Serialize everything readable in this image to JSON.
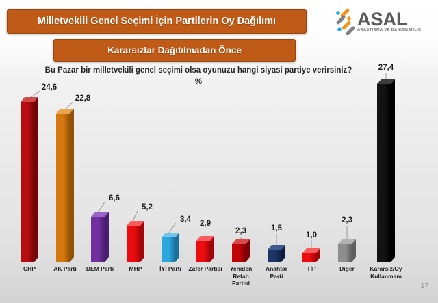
{
  "header": {
    "title": "Milletvekili Genel Seçimi İçin Partilerin Oy Dağılımı",
    "subtitle": "Kararsızlar Dağıtılmadan Önce",
    "logo": {
      "name": "ASAL",
      "tagline": "ARAŞTIRMA VE DANIŞMANLIK",
      "icon": "asal-percent-mark",
      "colors": {
        "gray": "#808285",
        "orange": "#f7941e",
        "blue": "#27aae1"
      }
    }
  },
  "page": {
    "number": "17"
  },
  "colors": {
    "banner_bg": "#bf5b17",
    "banner_border": "#96470f",
    "leader_line": "#9a9a9a",
    "background_top": "#ffffff",
    "background_bottom": "#d2d2d2"
  },
  "chart_data": {
    "type": "bar",
    "style": "3d-column",
    "title": "Bu Pazar bir milletvekili genel seçimi olsa oyunuzu hangi siyasi partiye verirsiniz?",
    "unit": "%",
    "ylim": [
      0,
      30
    ],
    "grid": false,
    "legend": "none",
    "categories": [
      "CHP",
      "AK Parti",
      "DEM Parti",
      "MHP",
      "İYİ Parti",
      "Zafer Partisi",
      "Yeniden Refah Partisi",
      "Anahtar Parti",
      "TİP",
      "Diğer",
      "Kararsız/Oy Kullanmam"
    ],
    "values": [
      24.6,
      22.8,
      6.6,
      5.2,
      3.4,
      2.9,
      2.3,
      1.5,
      1.0,
      2.3,
      27.4
    ],
    "bars": [
      {
        "category": "CHP",
        "lines": [
          "CHP"
        ],
        "value": 24.6,
        "label": "24,6",
        "front": "#b50d10",
        "side": "#730507",
        "top": "#d24949",
        "placement": "diag",
        "label_dx": 29,
        "label_dy": 21
      },
      {
        "category": "AK Parti",
        "lines": [
          "AK Parti"
        ],
        "value": 22.8,
        "label": "22,8",
        "front": "#d4770e",
        "side": "#925108",
        "top": "#eaa34f",
        "placement": "diag",
        "label_dx": 26,
        "label_dy": 22
      },
      {
        "category": "DEM Parti",
        "lines": [
          "DEM Parti"
        ],
        "value": 6.6,
        "label": "6,6",
        "front": "#7030a0",
        "side": "#4a1e6e",
        "top": "#9c64c8",
        "placement": "diag",
        "label_dx": 21,
        "label_dy": 27
      },
      {
        "category": "MHP",
        "lines": [
          "MHP"
        ],
        "value": 5.2,
        "label": "5,2",
        "front": "#ec0b0e",
        "side": "#a30608",
        "top": "#f85c5c",
        "placement": "diag",
        "label_dx": 17,
        "label_dy": 27
      },
      {
        "category": "İYİ Parti",
        "lines": [
          "İYİ Parti"
        ],
        "value": 3.4,
        "label": "3,4",
        "front": "#2ba6df",
        "side": "#1b719b",
        "top": "#72c6ea",
        "placement": "diag",
        "label_dx": 22,
        "label_dy": 26
      },
      {
        "category": "Zafer Partisi",
        "lines": [
          "Zafer Partisi"
        ],
        "value": 2.9,
        "label": "2,9",
        "front": "#ec0b0e",
        "side": "#a30608",
        "top": "#f85c5c",
        "placement": "above",
        "label_dx": 0,
        "label_dy": 25
      },
      {
        "category": "Yeniden Refah Partisi",
        "lines": [
          "Yeniden",
          "Refah",
          "Partisi"
        ],
        "value": 2.3,
        "label": "2,3",
        "front": "#bf0408",
        "side": "#7e0205",
        "top": "#d84a4a",
        "placement": "vert",
        "label_dx": 0,
        "label_dy": 19
      },
      {
        "category": "Anahtar Parti",
        "lines": [
          "Anahtar",
          "Parti"
        ],
        "value": 1.5,
        "label": "1,5",
        "front": "#1c3566",
        "side": "#0f1e3e",
        "top": "#3d5a8d",
        "placement": "vert",
        "label_dx": 0,
        "label_dy": 31
      },
      {
        "category": "TİP",
        "lines": [
          "TİP"
        ],
        "value": 1.0,
        "label": "1,0",
        "front": "#ec0b0e",
        "side": "#a30608",
        "top": "#f85c5c",
        "placement": "vert",
        "label_dx": 0,
        "label_dy": 26
      },
      {
        "category": "Diğer",
        "lines": [
          "Diğer"
        ],
        "value": 2.3,
        "label": "2,3",
        "front": "#8e8e8e",
        "side": "#5f5f5f",
        "top": "#b2b2b2",
        "placement": "vert",
        "label_dx": 0,
        "label_dy": 35
      },
      {
        "category": "Kararsız/Oy Kullanmam",
        "lines": [
          "Kararsız/Oy",
          "Kullanmam"
        ],
        "value": 27.4,
        "label": "27,4",
        "front": "#131313",
        "side": "#000000",
        "top": "#3c3c3c",
        "placement": "vert",
        "label_dx": 0,
        "label_dy": 24
      }
    ]
  }
}
